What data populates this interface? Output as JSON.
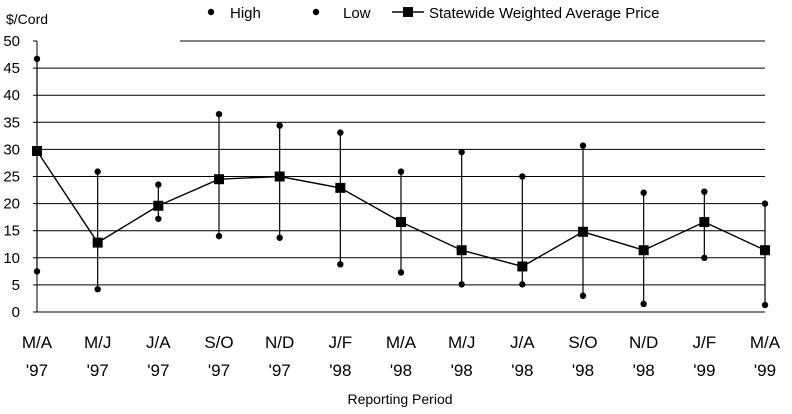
{
  "chart_data": {
    "type": "line",
    "ylabel": "$/Cord",
    "xlabel": "Reporting Period",
    "ylim": [
      0,
      50
    ],
    "yticks": [
      0,
      5,
      10,
      15,
      20,
      25,
      30,
      35,
      40,
      45,
      50
    ],
    "grid": "horizontal",
    "legend_position": "top",
    "categories": [
      [
        "M/A",
        "'97"
      ],
      [
        "M/J",
        "'97"
      ],
      [
        "J/A",
        "'97"
      ],
      [
        "S/O",
        "'97"
      ],
      [
        "N/D",
        "'97"
      ],
      [
        "J/F",
        "'98"
      ],
      [
        "M/A",
        "'98"
      ],
      [
        "M/J",
        "'98"
      ],
      [
        "J/A",
        "'98"
      ],
      [
        "S/O",
        "'98"
      ],
      [
        "N/D",
        "'98"
      ],
      [
        "J/F",
        "'99"
      ],
      [
        "M/A",
        "'99"
      ]
    ],
    "series": [
      {
        "name": "High",
        "marker": "dot",
        "values": [
          46.7,
          25.9,
          23.5,
          36.5,
          34.4,
          33.1,
          25.9,
          29.5,
          25.0,
          30.7,
          22.0,
          22.2,
          20.0
        ]
      },
      {
        "name": "Low",
        "marker": "dot",
        "values": [
          7.5,
          4.2,
          17.2,
          14.0,
          13.7,
          8.8,
          7.3,
          5.1,
          5.1,
          3.0,
          1.5,
          10.0,
          1.3
        ]
      },
      {
        "name": "Statewide Weighted Average Price",
        "marker": "square",
        "values": [
          29.7,
          12.8,
          19.6,
          24.5,
          25.0,
          22.9,
          16.6,
          11.4,
          8.4,
          14.8,
          11.4,
          16.6,
          11.4
        ]
      }
    ],
    "colors": {
      "line": "#000000",
      "grid": "#000000",
      "background": "#ffffff"
    }
  }
}
